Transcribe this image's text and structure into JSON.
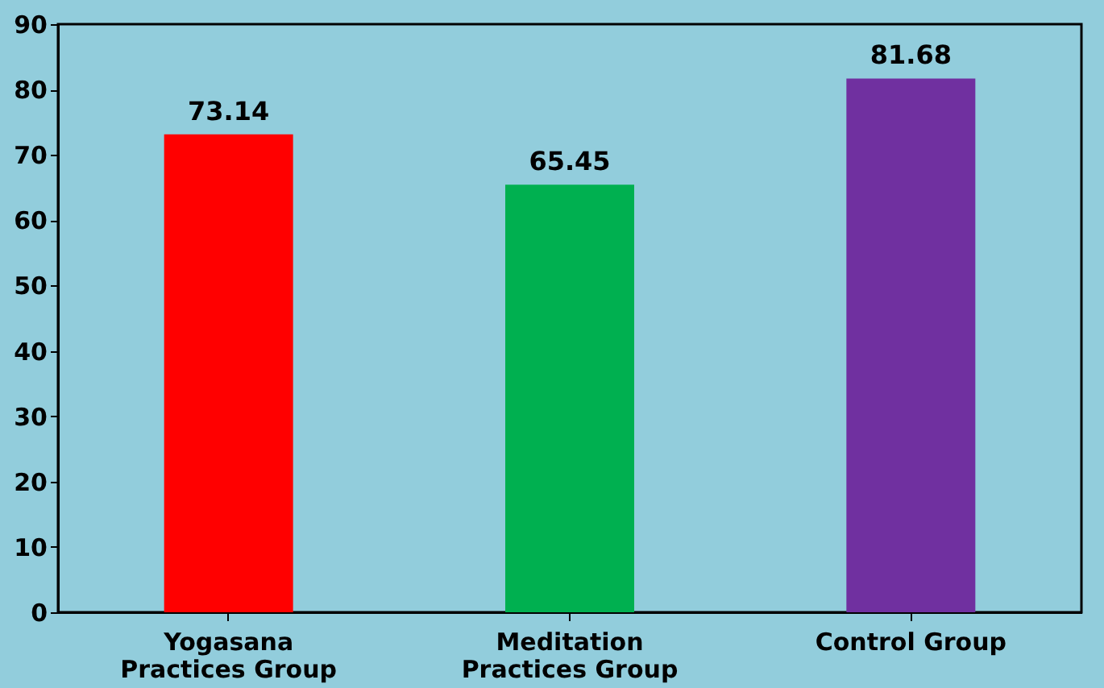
{
  "chart_data": {
    "type": "bar",
    "categories": [
      "Yogasana Practices Group",
      "Meditation Practices Group",
      "Control  Group"
    ],
    "values": [
      73.14,
      65.45,
      81.68
    ],
    "colors": [
      "#ff0000",
      "#00b050",
      "#7030a0"
    ],
    "ylim": [
      0,
      90
    ],
    "yticks": [
      0,
      10,
      20,
      30,
      40,
      50,
      60,
      70,
      80,
      90
    ],
    "grid": false,
    "data_labels": true
  }
}
